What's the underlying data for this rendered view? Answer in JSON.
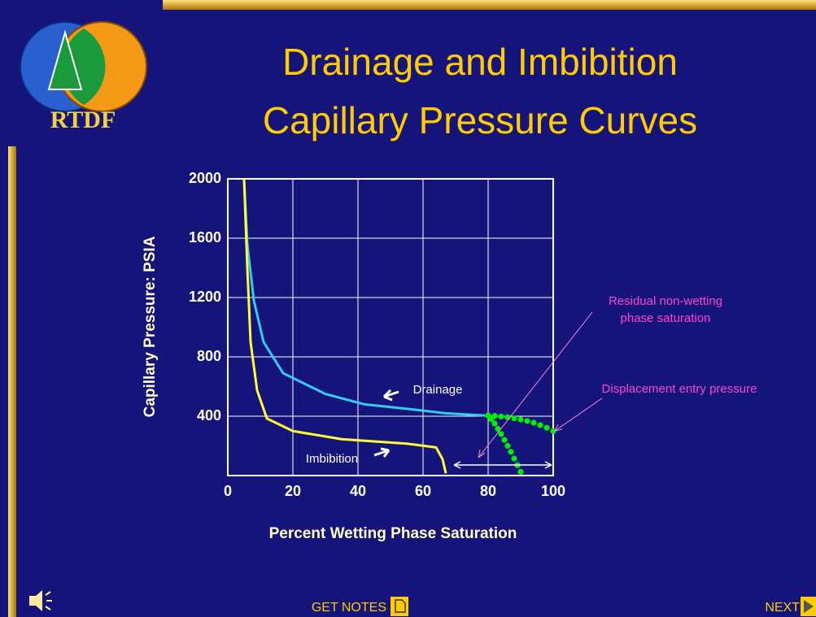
{
  "slide": {
    "title": [
      "Drainage and Imbibition",
      "Capillary Pressure Curves"
    ],
    "logo_text": "RTDF",
    "buttons": {
      "notes": "GET NOTES",
      "next": "NEXT"
    }
  },
  "chart_data": {
    "type": "line",
    "xlabel": "Percent Wetting Phase Saturation",
    "ylabel": "Capillary  Pressure: PSIA",
    "xlim": [
      0,
      100
    ],
    "xticks": [
      0,
      20,
      40,
      60,
      80,
      100
    ],
    "ylim": [
      0,
      2000
    ],
    "yticks": [
      400,
      800,
      1200,
      1600,
      2000
    ],
    "grid": true,
    "series": [
      {
        "name": "Drainage",
        "color": "#33ccee",
        "x": [
          5,
          6,
          8,
          11,
          17,
          30,
          42,
          55,
          67,
          79
        ],
        "values": [
          2000,
          1560,
          1180,
          900,
          690,
          550,
          480,
          450,
          420,
          405
        ]
      },
      {
        "name": "Imbibition",
        "color": "#ffff33",
        "x": [
          5,
          6,
          7,
          9,
          12,
          20,
          35,
          55,
          64,
          66,
          67
        ],
        "values": [
          2000,
          1400,
          900,
          575,
          385,
          300,
          245,
          215,
          190,
          110,
          15
        ]
      },
      {
        "color": "#00ee00",
        "style": "dots",
        "x": [
          80,
          82,
          84,
          86,
          88,
          90,
          92,
          94,
          96,
          98,
          100
        ],
        "values": [
          405,
          402,
          398,
          393,
          386,
          378,
          368,
          356,
          340,
          322,
          300
        ]
      },
      {
        "color": "#00ee00",
        "style": "dots",
        "x": [
          80,
          81,
          82,
          83,
          84,
          85,
          86,
          87,
          88,
          89,
          90
        ],
        "values": [
          405,
          380,
          350,
          315,
          280,
          240,
          200,
          160,
          115,
          70,
          25
        ]
      }
    ],
    "annotations": [
      "Drainage",
      "Imbibition",
      [
        "Residual non-wetting",
        "phase saturation"
      ],
      "Displacement entry pressure"
    ]
  }
}
